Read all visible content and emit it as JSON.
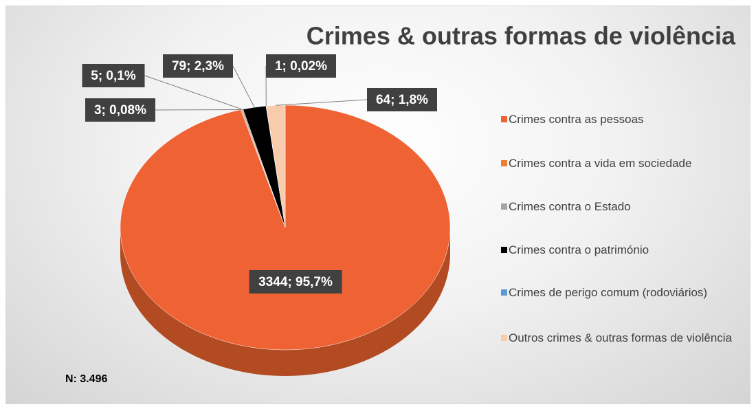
{
  "chart_data": {
    "type": "pie3d",
    "title": "Crimes & outras formas de violência",
    "series": [
      {
        "name": "Crimes contra as pessoas",
        "color": "#ef6233",
        "values": [
          3344
        ],
        "value_labels": [
          "3344; 95,7%"
        ]
      },
      {
        "name": "Crimes contra a vida em sociedade",
        "color": "#ed7d31",
        "values": [
          3
        ],
        "value_labels": [
          "3; 0,08%"
        ]
      },
      {
        "name": "Crimes contra o Estado",
        "color": "#a5a5a5",
        "values": [
          5
        ],
        "value_labels": [
          "5; 0,1%"
        ]
      },
      {
        "name": "Crimes contra o património",
        "color": "#000000",
        "values": [
          79
        ],
        "value_labels": [
          "79; 2,3%"
        ]
      },
      {
        "name": "Crimes de perigo comum (rodoviários)",
        "color": "#5b9bd5",
        "values": [
          1
        ],
        "value_labels": [
          "1; 0,02%"
        ]
      },
      {
        "name": "Outros crimes & outras formas de violência",
        "color": "#f8cbad",
        "values": [
          64
        ],
        "value_labels": [
          "64; 1,8%"
        ]
      }
    ],
    "annotation": "N: 3.496"
  }
}
